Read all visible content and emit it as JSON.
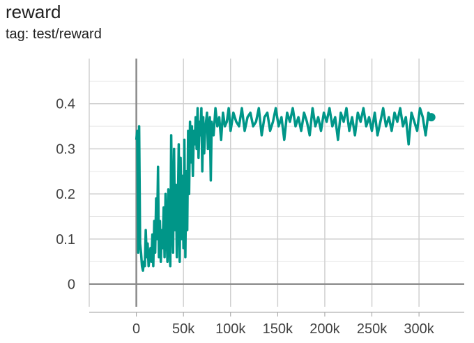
{
  "header": {
    "title": "reward",
    "subtitle": "tag: test/reward"
  },
  "colors": {
    "series": "#009688",
    "grid": "#d0d0d0",
    "axis": "#9e9e9e",
    "zero_line": "#8a8a8a"
  },
  "chart_data": {
    "type": "line",
    "title": "reward",
    "subtitle": "tag: test/reward",
    "xlabel": "",
    "ylabel": "",
    "xlim": [
      -50000,
      348000
    ],
    "ylim": [
      -0.05,
      0.5
    ],
    "x_ticks": [
      {
        "value": 0,
        "label": "0"
      },
      {
        "value": 50000,
        "label": "50k"
      },
      {
        "value": 100000,
        "label": "100k"
      },
      {
        "value": 150000,
        "label": "150k"
      },
      {
        "value": 200000,
        "label": "200k"
      },
      {
        "value": 250000,
        "label": "250k"
      },
      {
        "value": 300000,
        "label": "300k"
      }
    ],
    "y_ticks": [
      {
        "value": 0,
        "label": "0"
      },
      {
        "value": 0.1,
        "label": "0.1"
      },
      {
        "value": 0.2,
        "label": "0.2"
      },
      {
        "value": 0.3,
        "label": "0.3"
      },
      {
        "value": 0.4,
        "label": "0.4"
      }
    ],
    "grid": true,
    "series": [
      {
        "x": [
          0,
          1000,
          2000,
          3000,
          4000,
          5000,
          6000,
          7000,
          8000,
          9000,
          10000,
          11000,
          12000,
          13000,
          14000,
          15000,
          16000,
          17000,
          18000,
          19000,
          20000,
          21000,
          22000,
          23000,
          24000,
          25000,
          26000,
          27000,
          28000,
          29000,
          30000,
          31000,
          32000,
          33000,
          34000,
          35000,
          36000,
          37000,
          38000,
          39000,
          40000,
          41000,
          42000,
          43000,
          44000,
          45000,
          46000,
          47000,
          48000,
          49000,
          50000,
          51000,
          52000,
          53000,
          54000,
          55000,
          56000,
          57000,
          58000,
          59000,
          60000,
          61000,
          62000,
          63000,
          64000,
          65000,
          66000,
          67000,
          68000,
          69000,
          70000,
          71000,
          72000,
          73000,
          74000,
          75000,
          76000,
          77000,
          78000,
          79000,
          80000,
          82000,
          84000,
          86000,
          88000,
          90000,
          92000,
          94000,
          96000,
          98000,
          100000,
          103000,
          106000,
          109000,
          112000,
          115000,
          118000,
          121000,
          124000,
          127000,
          130000,
          133000,
          136000,
          139000,
          142000,
          145000,
          148000,
          151000,
          154000,
          157000,
          160000,
          163000,
          166000,
          169000,
          172000,
          175000,
          178000,
          181000,
          184000,
          187000,
          190000,
          193000,
          196000,
          199000,
          202000,
          205000,
          208000,
          211000,
          214000,
          217000,
          220000,
          223000,
          226000,
          229000,
          232000,
          235000,
          238000,
          241000,
          244000,
          247000,
          250000,
          253000,
          256000,
          259000,
          262000,
          265000,
          268000,
          271000,
          274000,
          277000,
          280000,
          283000,
          286000,
          289000,
          292000,
          295000,
          298000,
          301000,
          304000,
          307000,
          310000,
          313000
        ],
        "y": [
          0.32,
          0.34,
          0.07,
          0.35,
          0.09,
          0.07,
          0.04,
          0.03,
          0.05,
          0.04,
          0.12,
          0.06,
          0.09,
          0.04,
          0.06,
          0.08,
          0.05,
          0.11,
          0.04,
          0.14,
          0.07,
          0.19,
          0.1,
          0.26,
          0.06,
          0.14,
          0.05,
          0.12,
          0.08,
          0.17,
          0.06,
          0.2,
          0.13,
          0.05,
          0.21,
          0.1,
          0.04,
          0.33,
          0.14,
          0.07,
          0.3,
          0.12,
          0.22,
          0.06,
          0.16,
          0.31,
          0.05,
          0.28,
          0.1,
          0.24,
          0.08,
          0.32,
          0.06,
          0.25,
          0.12,
          0.34,
          0.2,
          0.36,
          0.27,
          0.35,
          0.24,
          0.34,
          0.31,
          0.37,
          0.3,
          0.39,
          0.28,
          0.36,
          0.33,
          0.39,
          0.25,
          0.37,
          0.29,
          0.34,
          0.36,
          0.38,
          0.3,
          0.35,
          0.37,
          0.23,
          0.36,
          0.33,
          0.39,
          0.35,
          0.37,
          0.32,
          0.38,
          0.35,
          0.36,
          0.39,
          0.34,
          0.38,
          0.36,
          0.35,
          0.39,
          0.34,
          0.37,
          0.38,
          0.35,
          0.36,
          0.39,
          0.33,
          0.37,
          0.38,
          0.34,
          0.36,
          0.39,
          0.35,
          0.37,
          0.32,
          0.38,
          0.36,
          0.39,
          0.35,
          0.37,
          0.34,
          0.38,
          0.36,
          0.33,
          0.39,
          0.35,
          0.37,
          0.34,
          0.38,
          0.36,
          0.39,
          0.35,
          0.37,
          0.32,
          0.38,
          0.36,
          0.39,
          0.34,
          0.37,
          0.33,
          0.38,
          0.36,
          0.39,
          0.35,
          0.37,
          0.34,
          0.38,
          0.33,
          0.36,
          0.39,
          0.35,
          0.37,
          0.34,
          0.38,
          0.36,
          0.39,
          0.35,
          0.37,
          0.31,
          0.38,
          0.36,
          0.34,
          0.39,
          0.37,
          0.33,
          0.38,
          0.37
        ]
      }
    ]
  }
}
